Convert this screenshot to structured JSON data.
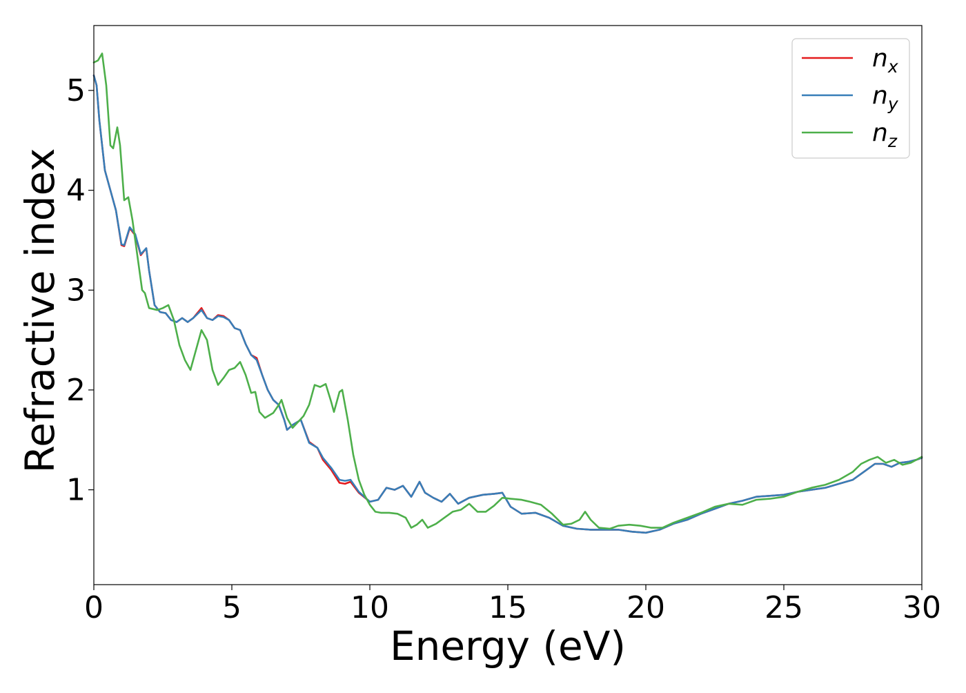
{
  "chart_data": {
    "type": "line",
    "title": "",
    "xlabel": "Energy (eV)",
    "ylabel": "Refractive index",
    "xlim": [
      0,
      30
    ],
    "ylim": [
      0.05,
      5.65
    ],
    "xticks": [
      0,
      5,
      10,
      15,
      20,
      25,
      30
    ],
    "yticks": [
      1,
      2,
      3,
      4,
      5
    ],
    "grid": false,
    "legend_position": "top-right",
    "series": [
      {
        "name": "n_x",
        "label_base": "n",
        "label_sub": "x",
        "color": "#e41a1c",
        "points": [
          [
            0.0,
            5.15
          ],
          [
            0.1,
            5.05
          ],
          [
            0.2,
            4.7
          ],
          [
            0.4,
            4.2
          ],
          [
            0.6,
            4.0
          ],
          [
            0.8,
            3.8
          ],
          [
            1.0,
            3.45
          ],
          [
            1.1,
            3.44
          ],
          [
            1.3,
            3.62
          ],
          [
            1.5,
            3.55
          ],
          [
            1.7,
            3.35
          ],
          [
            1.9,
            3.42
          ],
          [
            2.0,
            3.2
          ],
          [
            2.2,
            2.85
          ],
          [
            2.4,
            2.78
          ],
          [
            2.6,
            2.77
          ],
          [
            2.8,
            2.7
          ],
          [
            3.0,
            2.68
          ],
          [
            3.2,
            2.72
          ],
          [
            3.4,
            2.68
          ],
          [
            3.6,
            2.72
          ],
          [
            3.9,
            2.82
          ],
          [
            4.1,
            2.72
          ],
          [
            4.3,
            2.7
          ],
          [
            4.5,
            2.75
          ],
          [
            4.7,
            2.74
          ],
          [
            4.9,
            2.7
          ],
          [
            5.1,
            2.62
          ],
          [
            5.3,
            2.6
          ],
          [
            5.5,
            2.46
          ],
          [
            5.7,
            2.35
          ],
          [
            5.9,
            2.32
          ],
          [
            6.1,
            2.15
          ],
          [
            6.3,
            2.0
          ],
          [
            6.5,
            1.9
          ],
          [
            6.7,
            1.85
          ],
          [
            6.9,
            1.7
          ],
          [
            7.0,
            1.6
          ],
          [
            7.2,
            1.65
          ],
          [
            7.5,
            1.7
          ],
          [
            7.8,
            1.48
          ],
          [
            8.1,
            1.42
          ],
          [
            8.3,
            1.3
          ],
          [
            8.6,
            1.2
          ],
          [
            8.9,
            1.07
          ],
          [
            9.1,
            1.06
          ],
          [
            9.3,
            1.08
          ],
          [
            9.6,
            0.97
          ],
          [
            10.0,
            0.88
          ],
          [
            10.3,
            0.9
          ],
          [
            10.6,
            1.02
          ],
          [
            10.9,
            1.0
          ],
          [
            11.2,
            1.04
          ],
          [
            11.5,
            0.93
          ],
          [
            11.8,
            1.08
          ],
          [
            12.0,
            0.97
          ],
          [
            12.3,
            0.92
          ],
          [
            12.6,
            0.88
          ],
          [
            12.9,
            0.96
          ],
          [
            13.2,
            0.86
          ],
          [
            13.6,
            0.92
          ],
          [
            14.1,
            0.95
          ],
          [
            14.5,
            0.96
          ],
          [
            14.8,
            0.97
          ],
          [
            15.1,
            0.83
          ],
          [
            15.5,
            0.76
          ],
          [
            16.0,
            0.77
          ],
          [
            16.5,
            0.72
          ],
          [
            17.0,
            0.64
          ],
          [
            17.5,
            0.61
          ],
          [
            18.0,
            0.6
          ],
          [
            18.5,
            0.6
          ],
          [
            19.0,
            0.6
          ],
          [
            19.5,
            0.58
          ],
          [
            20.0,
            0.57
          ],
          [
            20.5,
            0.6
          ],
          [
            21.0,
            0.66
          ],
          [
            21.5,
            0.7
          ],
          [
            22.0,
            0.76
          ],
          [
            22.5,
            0.81
          ],
          [
            23.0,
            0.86
          ],
          [
            23.5,
            0.89
          ],
          [
            24.0,
            0.93
          ],
          [
            24.5,
            0.94
          ],
          [
            25.0,
            0.95
          ],
          [
            25.5,
            0.98
          ],
          [
            26.0,
            1.0
          ],
          [
            26.5,
            1.02
          ],
          [
            27.0,
            1.06
          ],
          [
            27.5,
            1.1
          ],
          [
            28.0,
            1.2
          ],
          [
            28.3,
            1.26
          ],
          [
            28.6,
            1.26
          ],
          [
            28.9,
            1.23
          ],
          [
            29.2,
            1.27
          ],
          [
            29.5,
            1.28
          ],
          [
            29.8,
            1.3
          ],
          [
            30.0,
            1.32
          ]
        ]
      },
      {
        "name": "n_y",
        "label_base": "n",
        "label_sub": "y",
        "color": "#377eb8",
        "points": [
          [
            0.0,
            5.15
          ],
          [
            0.1,
            5.05
          ],
          [
            0.2,
            4.7
          ],
          [
            0.4,
            4.2
          ],
          [
            0.6,
            4.0
          ],
          [
            0.8,
            3.8
          ],
          [
            1.0,
            3.46
          ],
          [
            1.1,
            3.45
          ],
          [
            1.3,
            3.63
          ],
          [
            1.5,
            3.56
          ],
          [
            1.7,
            3.36
          ],
          [
            1.9,
            3.42
          ],
          [
            2.0,
            3.2
          ],
          [
            2.2,
            2.85
          ],
          [
            2.4,
            2.78
          ],
          [
            2.6,
            2.77
          ],
          [
            2.8,
            2.7
          ],
          [
            3.0,
            2.68
          ],
          [
            3.2,
            2.72
          ],
          [
            3.4,
            2.68
          ],
          [
            3.6,
            2.72
          ],
          [
            3.9,
            2.8
          ],
          [
            4.1,
            2.72
          ],
          [
            4.3,
            2.7
          ],
          [
            4.5,
            2.74
          ],
          [
            4.7,
            2.73
          ],
          [
            4.9,
            2.7
          ],
          [
            5.1,
            2.62
          ],
          [
            5.3,
            2.6
          ],
          [
            5.5,
            2.46
          ],
          [
            5.7,
            2.35
          ],
          [
            5.9,
            2.3
          ],
          [
            6.1,
            2.15
          ],
          [
            6.3,
            2.0
          ],
          [
            6.5,
            1.9
          ],
          [
            6.7,
            1.85
          ],
          [
            6.9,
            1.7
          ],
          [
            7.0,
            1.6
          ],
          [
            7.2,
            1.65
          ],
          [
            7.5,
            1.7
          ],
          [
            7.8,
            1.47
          ],
          [
            8.1,
            1.42
          ],
          [
            8.3,
            1.32
          ],
          [
            8.6,
            1.22
          ],
          [
            8.9,
            1.1
          ],
          [
            9.1,
            1.09
          ],
          [
            9.3,
            1.1
          ],
          [
            9.6,
            0.98
          ],
          [
            10.0,
            0.88
          ],
          [
            10.3,
            0.9
          ],
          [
            10.6,
            1.02
          ],
          [
            10.9,
            1.0
          ],
          [
            11.2,
            1.04
          ],
          [
            11.5,
            0.93
          ],
          [
            11.8,
            1.08
          ],
          [
            12.0,
            0.97
          ],
          [
            12.3,
            0.92
          ],
          [
            12.6,
            0.88
          ],
          [
            12.9,
            0.96
          ],
          [
            13.2,
            0.86
          ],
          [
            13.6,
            0.92
          ],
          [
            14.1,
            0.95
          ],
          [
            14.5,
            0.96
          ],
          [
            14.8,
            0.97
          ],
          [
            15.1,
            0.83
          ],
          [
            15.5,
            0.76
          ],
          [
            16.0,
            0.77
          ],
          [
            16.5,
            0.72
          ],
          [
            17.0,
            0.64
          ],
          [
            17.5,
            0.61
          ],
          [
            18.0,
            0.6
          ],
          [
            18.5,
            0.6
          ],
          [
            19.0,
            0.6
          ],
          [
            19.5,
            0.58
          ],
          [
            20.0,
            0.57
          ],
          [
            20.5,
            0.6
          ],
          [
            21.0,
            0.66
          ],
          [
            21.5,
            0.7
          ],
          [
            22.0,
            0.76
          ],
          [
            22.5,
            0.81
          ],
          [
            23.0,
            0.86
          ],
          [
            23.5,
            0.89
          ],
          [
            24.0,
            0.93
          ],
          [
            24.5,
            0.94
          ],
          [
            25.0,
            0.95
          ],
          [
            25.5,
            0.98
          ],
          [
            26.0,
            1.0
          ],
          [
            26.5,
            1.02
          ],
          [
            27.0,
            1.06
          ],
          [
            27.5,
            1.1
          ],
          [
            28.0,
            1.2
          ],
          [
            28.3,
            1.26
          ],
          [
            28.6,
            1.26
          ],
          [
            28.9,
            1.23
          ],
          [
            29.2,
            1.27
          ],
          [
            29.5,
            1.28
          ],
          [
            29.8,
            1.3
          ],
          [
            30.0,
            1.32
          ]
        ]
      },
      {
        "name": "n_z",
        "label_base": "n",
        "label_sub": "z",
        "color": "#4daf4a",
        "points": [
          [
            0.0,
            5.28
          ],
          [
            0.15,
            5.3
          ],
          [
            0.3,
            5.37
          ],
          [
            0.45,
            5.05
          ],
          [
            0.6,
            4.45
          ],
          [
            0.7,
            4.42
          ],
          [
            0.85,
            4.63
          ],
          [
            0.95,
            4.45
          ],
          [
            1.1,
            3.9
          ],
          [
            1.25,
            3.93
          ],
          [
            1.4,
            3.7
          ],
          [
            1.6,
            3.3
          ],
          [
            1.75,
            3.0
          ],
          [
            1.85,
            2.97
          ],
          [
            2.0,
            2.82
          ],
          [
            2.3,
            2.8
          ],
          [
            2.5,
            2.82
          ],
          [
            2.7,
            2.85
          ],
          [
            2.9,
            2.7
          ],
          [
            3.1,
            2.45
          ],
          [
            3.3,
            2.3
          ],
          [
            3.5,
            2.2
          ],
          [
            3.7,
            2.4
          ],
          [
            3.9,
            2.6
          ],
          [
            4.1,
            2.5
          ],
          [
            4.3,
            2.2
          ],
          [
            4.5,
            2.05
          ],
          [
            4.7,
            2.12
          ],
          [
            4.9,
            2.2
          ],
          [
            5.1,
            2.22
          ],
          [
            5.3,
            2.28
          ],
          [
            5.5,
            2.15
          ],
          [
            5.7,
            1.97
          ],
          [
            5.85,
            1.98
          ],
          [
            6.0,
            1.78
          ],
          [
            6.2,
            1.72
          ],
          [
            6.5,
            1.77
          ],
          [
            6.7,
            1.85
          ],
          [
            6.8,
            1.9
          ],
          [
            7.0,
            1.72
          ],
          [
            7.2,
            1.62
          ],
          [
            7.4,
            1.68
          ],
          [
            7.6,
            1.74
          ],
          [
            7.8,
            1.85
          ],
          [
            8.0,
            2.05
          ],
          [
            8.2,
            2.03
          ],
          [
            8.4,
            2.06
          ],
          [
            8.6,
            1.88
          ],
          [
            8.7,
            1.78
          ],
          [
            8.9,
            1.98
          ],
          [
            9.0,
            2.0
          ],
          [
            9.2,
            1.7
          ],
          [
            9.4,
            1.35
          ],
          [
            9.6,
            1.1
          ],
          [
            9.8,
            0.95
          ],
          [
            10.0,
            0.85
          ],
          [
            10.2,
            0.78
          ],
          [
            10.4,
            0.77
          ],
          [
            10.7,
            0.77
          ],
          [
            11.0,
            0.76
          ],
          [
            11.3,
            0.72
          ],
          [
            11.5,
            0.62
          ],
          [
            11.7,
            0.65
          ],
          [
            11.9,
            0.7
          ],
          [
            12.1,
            0.62
          ],
          [
            12.4,
            0.66
          ],
          [
            12.7,
            0.72
          ],
          [
            13.0,
            0.78
          ],
          [
            13.3,
            0.8
          ],
          [
            13.6,
            0.86
          ],
          [
            13.9,
            0.78
          ],
          [
            14.2,
            0.78
          ],
          [
            14.5,
            0.84
          ],
          [
            14.8,
            0.92
          ],
          [
            15.1,
            0.91
          ],
          [
            15.5,
            0.9
          ],
          [
            15.8,
            0.88
          ],
          [
            16.2,
            0.85
          ],
          [
            16.6,
            0.76
          ],
          [
            17.0,
            0.65
          ],
          [
            17.3,
            0.66
          ],
          [
            17.6,
            0.7
          ],
          [
            17.8,
            0.78
          ],
          [
            18.0,
            0.7
          ],
          [
            18.3,
            0.62
          ],
          [
            18.7,
            0.61
          ],
          [
            19.0,
            0.64
          ],
          [
            19.4,
            0.65
          ],
          [
            19.8,
            0.64
          ],
          [
            20.2,
            0.62
          ],
          [
            20.6,
            0.62
          ],
          [
            21.0,
            0.67
          ],
          [
            21.5,
            0.72
          ],
          [
            22.0,
            0.77
          ],
          [
            22.5,
            0.83
          ],
          [
            23.0,
            0.86
          ],
          [
            23.5,
            0.85
          ],
          [
            24.0,
            0.9
          ],
          [
            24.5,
            0.91
          ],
          [
            25.0,
            0.93
          ],
          [
            25.5,
            0.98
          ],
          [
            26.0,
            1.02
          ],
          [
            26.5,
            1.05
          ],
          [
            27.0,
            1.1
          ],
          [
            27.5,
            1.18
          ],
          [
            27.8,
            1.26
          ],
          [
            28.1,
            1.3
          ],
          [
            28.4,
            1.33
          ],
          [
            28.7,
            1.27
          ],
          [
            29.0,
            1.3
          ],
          [
            29.3,
            1.25
          ],
          [
            29.6,
            1.27
          ],
          [
            30.0,
            1.33
          ]
        ]
      }
    ]
  }
}
